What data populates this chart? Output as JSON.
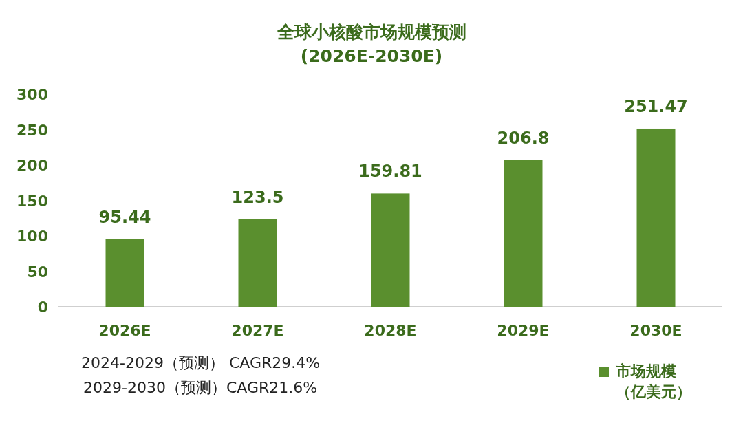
{
  "chart_data": {
    "type": "bar",
    "title": "全球小核酸市场规模预测",
    "subtitle": "(2026E-2030E)",
    "categories": [
      "2026E",
      "2027E",
      "2028E",
      "2029E",
      "2030E"
    ],
    "series": [
      {
        "name": "市场规模（亿美元）",
        "color": "#5a8f2e",
        "values": [
          95.44,
          123.5,
          159.81,
          206.8,
          251.47
        ]
      }
    ],
    "ylim": [
      0,
      300
    ],
    "yticks": [
      0,
      50,
      100,
      150,
      200,
      250,
      300
    ],
    "data_labels": true,
    "legend": "bottom right",
    "grid": false,
    "annotations": [
      "2024-2029（预测） CAGR29.4%",
      "2029-2030（预测）CAGR21.6%"
    ]
  }
}
